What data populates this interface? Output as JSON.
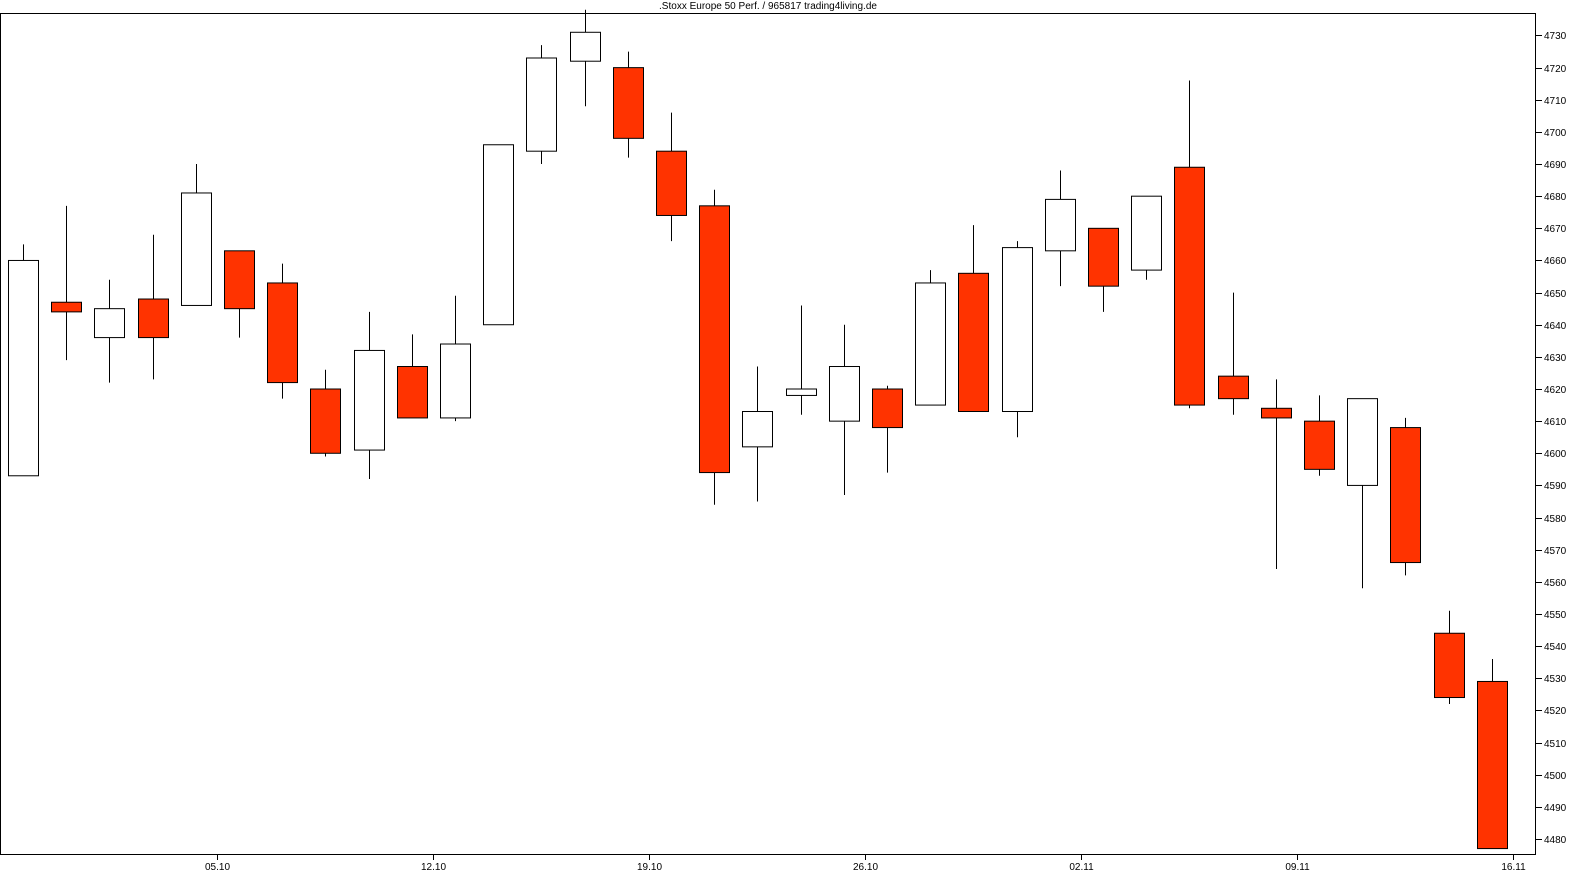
{
  "chart_data": {
    "type": "candlestick",
    "title": ".Stoxx Europe 50 Perf. / 965817 trading4living.de",
    "y_axis_position": "right",
    "grid": false,
    "ylim": [
      4475,
      4737
    ],
    "y_ticks": [
      4480,
      4490,
      4500,
      4510,
      4520,
      4530,
      4540,
      4550,
      4560,
      4570,
      4580,
      4590,
      4600,
      4610,
      4620,
      4630,
      4640,
      4650,
      4660,
      4670,
      4680,
      4690,
      4700,
      4710,
      4720,
      4730
    ],
    "x_tick_labels": [
      {
        "label": "05.10",
        "index": 4.5
      },
      {
        "label": "12.10",
        "index": 9.5
      },
      {
        "label": "19.10",
        "index": 14.5
      },
      {
        "label": "26.10",
        "index": 19.5
      },
      {
        "label": "02.11",
        "index": 24.5
      },
      {
        "label": "09.11",
        "index": 29.5
      },
      {
        "label": "16.11",
        "index": 34.5
      }
    ],
    "colors": {
      "down_fill": "#ff3300",
      "up_fill": "#ffffff",
      "outline": "#000000"
    },
    "candles": [
      {
        "open": 4593,
        "high": 4665,
        "low": 4593,
        "close": 4660
      },
      {
        "open": 4647,
        "high": 4677,
        "low": 4629,
        "close": 4644
      },
      {
        "open": 4636,
        "high": 4654,
        "low": 4622,
        "close": 4645
      },
      {
        "open": 4648,
        "high": 4668,
        "low": 4623,
        "close": 4636
      },
      {
        "open": 4646,
        "high": 4690,
        "low": 4646,
        "close": 4681
      },
      {
        "open": 4663,
        "high": 4663,
        "low": 4636,
        "close": 4645
      },
      {
        "open": 4653,
        "high": 4659,
        "low": 4617,
        "close": 4622
      },
      {
        "open": 4620,
        "high": 4626,
        "low": 4599,
        "close": 4600
      },
      {
        "open": 4601,
        "high": 4644,
        "low": 4592,
        "close": 4632
      },
      {
        "open": 4627,
        "high": 4637,
        "low": 4611,
        "close": 4611
      },
      {
        "open": 4611,
        "high": 4649,
        "low": 4610,
        "close": 4634
      },
      {
        "open": 4640,
        "high": 4696,
        "low": 4640,
        "close": 4696
      },
      {
        "open": 4694,
        "high": 4727,
        "low": 4690,
        "close": 4723
      },
      {
        "open": 4722,
        "high": 4738,
        "low": 4708,
        "close": 4731
      },
      {
        "open": 4720,
        "high": 4725,
        "low": 4692,
        "close": 4698
      },
      {
        "open": 4694,
        "high": 4706,
        "low": 4666,
        "close": 4674
      },
      {
        "open": 4677,
        "high": 4682,
        "low": 4584,
        "close": 4594
      },
      {
        "open": 4602,
        "high": 4627,
        "low": 4585,
        "close": 4613
      },
      {
        "open": 4618,
        "high": 4646,
        "low": 4612,
        "close": 4620
      },
      {
        "open": 4610,
        "high": 4640,
        "low": 4587,
        "close": 4627
      },
      {
        "open": 4620,
        "high": 4621,
        "low": 4594,
        "close": 4608
      },
      {
        "open": 4615,
        "high": 4657,
        "low": 4615,
        "close": 4653
      },
      {
        "open": 4656,
        "high": 4671,
        "low": 4613,
        "close": 4613
      },
      {
        "open": 4613,
        "high": 4666,
        "low": 4605,
        "close": 4664
      },
      {
        "open": 4663,
        "high": 4688,
        "low": 4652,
        "close": 4679
      },
      {
        "open": 4670,
        "high": 4670,
        "low": 4644,
        "close": 4652
      },
      {
        "open": 4657,
        "high": 4680,
        "low": 4654,
        "close": 4680
      },
      {
        "open": 4689,
        "high": 4716,
        "low": 4614,
        "close": 4615
      },
      {
        "open": 4624,
        "high": 4650,
        "low": 4612,
        "close": 4617
      },
      {
        "open": 4614,
        "high": 4623,
        "low": 4564,
        "close": 4611
      },
      {
        "open": 4610,
        "high": 4618,
        "low": 4593,
        "close": 4595
      },
      {
        "open": 4590,
        "high": 4617,
        "low": 4558,
        "close": 4617
      },
      {
        "open": 4608,
        "high": 4611,
        "low": 4562,
        "close": 4566
      },
      {
        "open": 4544,
        "high": 4551,
        "low": 4522,
        "close": 4524
      },
      {
        "open": 4529,
        "high": 4536,
        "low": 4477,
        "close": 4477
      }
    ]
  }
}
